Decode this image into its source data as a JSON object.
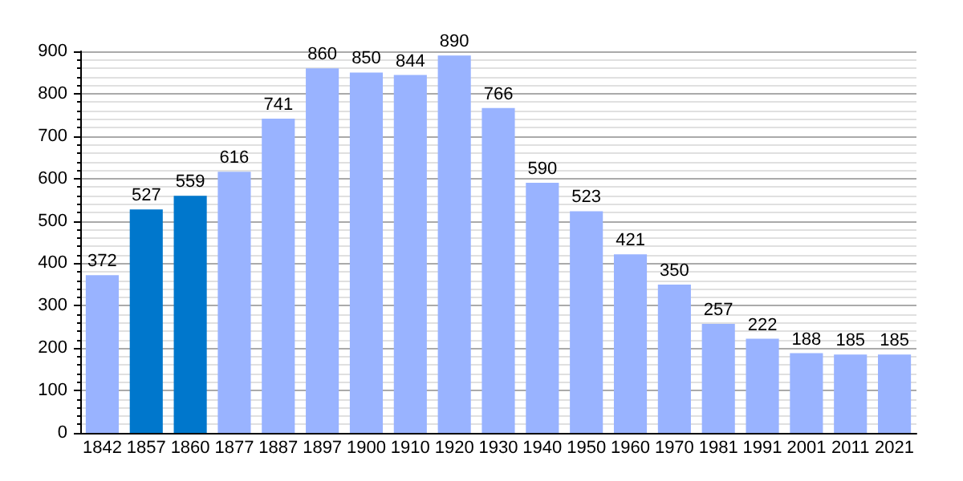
{
  "chart_data": {
    "type": "bar",
    "categories": [
      "1842",
      "1857",
      "1860",
      "1877",
      "1887",
      "1897",
      "1900",
      "1910",
      "1920",
      "1930",
      "1940",
      "1950",
      "1960",
      "1970",
      "1981",
      "1991",
      "2001",
      "2011",
      "2021"
    ],
    "values": [
      372,
      527,
      559,
      616,
      741,
      860,
      850,
      844,
      890,
      766,
      590,
      523,
      421,
      350,
      257,
      222,
      188,
      185,
      185
    ],
    "colors": [
      "#99b3ff",
      "#0077cc",
      "#0077cc",
      "#99b3ff",
      "#99b3ff",
      "#99b3ff",
      "#99b3ff",
      "#99b3ff",
      "#99b3ff",
      "#99b3ff",
      "#99b3ff",
      "#99b3ff",
      "#99b3ff",
      "#99b3ff",
      "#99b3ff",
      "#99b3ff",
      "#99b3ff",
      "#99b3ff",
      "#99b3ff"
    ],
    "ylim": [
      0,
      900
    ],
    "yticks": [
      0,
      100,
      200,
      300,
      400,
      500,
      600,
      700,
      800,
      900
    ],
    "grid": true,
    "data_labels": true
  }
}
